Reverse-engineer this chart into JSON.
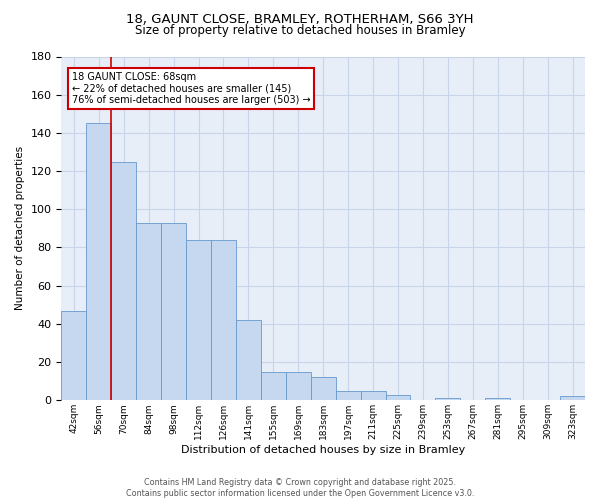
{
  "title1": "18, GAUNT CLOSE, BRAMLEY, ROTHERHAM, S66 3YH",
  "title2": "Size of property relative to detached houses in Bramley",
  "xlabel": "Distribution of detached houses by size in Bramley",
  "ylabel": "Number of detached properties",
  "categories": [
    "42sqm",
    "56sqm",
    "70sqm",
    "84sqm",
    "98sqm",
    "112sqm",
    "126sqm",
    "141sqm",
    "155sqm",
    "169sqm",
    "183sqm",
    "197sqm",
    "211sqm",
    "225sqm",
    "239sqm",
    "253sqm",
    "267sqm",
    "281sqm",
    "295sqm",
    "309sqm",
    "323sqm"
  ],
  "values": [
    47,
    145,
    125,
    93,
    93,
    84,
    84,
    42,
    15,
    15,
    12,
    5,
    5,
    3,
    0,
    1,
    0,
    1,
    0,
    0,
    2
  ],
  "bar_color": "#c5d8f0",
  "bar_edge_color": "#6699cc",
  "vline_x": 1.5,
  "vline_color": "#cc0000",
  "annotation_text": "18 GAUNT CLOSE: 68sqm\n← 22% of detached houses are smaller (145)\n76% of semi-detached houses are larger (503) →",
  "annotation_box_color": "#ffffff",
  "annotation_box_edge": "#cc0000",
  "ylim": [
    0,
    180
  ],
  "yticks": [
    0,
    20,
    40,
    60,
    80,
    100,
    120,
    140,
    160,
    180
  ],
  "footer": "Contains HM Land Registry data © Crown copyright and database right 2025.\nContains public sector information licensed under the Open Government Licence v3.0.",
  "bg_color": "#e8eef8",
  "grid_color": "#c8d4e8",
  "fig_width": 6.0,
  "fig_height": 5.0,
  "dpi": 100
}
